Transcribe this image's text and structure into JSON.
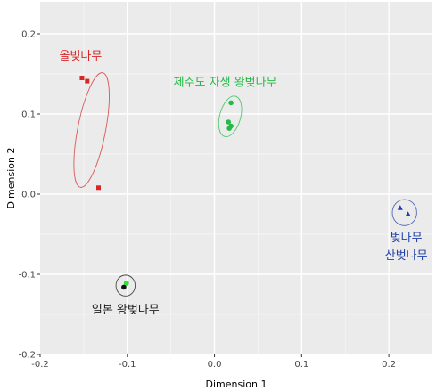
{
  "chart_data": {
    "type": "scatter",
    "title": "",
    "xlabel": "Dimension 1",
    "ylabel": "Dimension 2",
    "xlim": [
      -0.2,
      0.25
    ],
    "ylim": [
      -0.2,
      0.24
    ],
    "x_ticks": [
      -0.2,
      -0.1,
      0.0,
      0.1,
      0.2
    ],
    "x_tick_labels": [
      "-0.2",
      "-0.1",
      "0.0",
      "0.1",
      "0.2"
    ],
    "y_ticks": [
      -0.2,
      -0.1,
      0.0,
      0.1,
      0.2
    ],
    "y_tick_labels": [
      "-0.2",
      "-0.1",
      "0.0",
      "0.1",
      "0.2"
    ],
    "grid": true,
    "legend": "none",
    "series": [
      {
        "label": "올벚나무",
        "color": "#d62728",
        "marker": "square",
        "points": [
          [
            -0.152,
            0.145
          ],
          [
            -0.146,
            0.141
          ],
          [
            -0.133,
            0.008
          ]
        ],
        "ellipse": {
          "cx": -0.141,
          "cy": 0.08,
          "rx": 0.067,
          "ry": 0.016,
          "angle_deg": 101
        }
      },
      {
        "label": "제주도 자생 왕벚나무",
        "color": "#22bb44",
        "marker": "circle",
        "points": [
          [
            0.019,
            0.114
          ],
          [
            0.016,
            0.09
          ],
          [
            0.019,
            0.085
          ],
          [
            0.017,
            0.082
          ]
        ],
        "ellipse": {
          "cx": 0.018,
          "cy": 0.097,
          "rx": 0.024,
          "ry": 0.012,
          "angle_deg": 105
        }
      },
      {
        "label": "일본 왕벚나무",
        "color": "#111111",
        "marker": "circle",
        "points": [
          [
            -0.101,
            -0.111
          ],
          [
            -0.104,
            -0.116
          ]
        ],
        "ellipse": {
          "cx": -0.102,
          "cy": -0.114,
          "rx": 0.011,
          "ry": 0.012,
          "angle_deg": 0
        }
      },
      {
        "label": "벚나무\n산벚나무",
        "color": "#1f3fa8",
        "marker": "triangle",
        "points": [
          [
            0.213,
            -0.017
          ],
          [
            0.222,
            -0.025
          ]
        ],
        "ellipse": {
          "cx": 0.218,
          "cy": -0.023,
          "rx": 0.014,
          "ry": 0.015,
          "angle_deg": 0
        }
      }
    ],
    "annotations": [
      {
        "text": "올벚나무",
        "x": -0.178,
        "y": 0.168,
        "color": "#d62728"
      },
      {
        "text": "제주도 자생 왕벚나무",
        "x": -0.047,
        "y": 0.135,
        "color": "#22bb44"
      },
      {
        "text": "일본 왕벚나무",
        "x": -0.102,
        "y": -0.149,
        "color": "#222222",
        "anchor": "middle"
      },
      {
        "text": "벚나무",
        "x": 0.22,
        "y": -0.059,
        "color": "#1f3fa8",
        "anchor": "middle"
      },
      {
        "text": "산벚나무",
        "x": 0.22,
        "y": -0.081,
        "color": "#1f3fa8",
        "anchor": "middle"
      }
    ],
    "extra_points": [
      {
        "x": -0.101,
        "y": -0.111,
        "color": "#22ee22",
        "marker": "circle"
      }
    ]
  }
}
